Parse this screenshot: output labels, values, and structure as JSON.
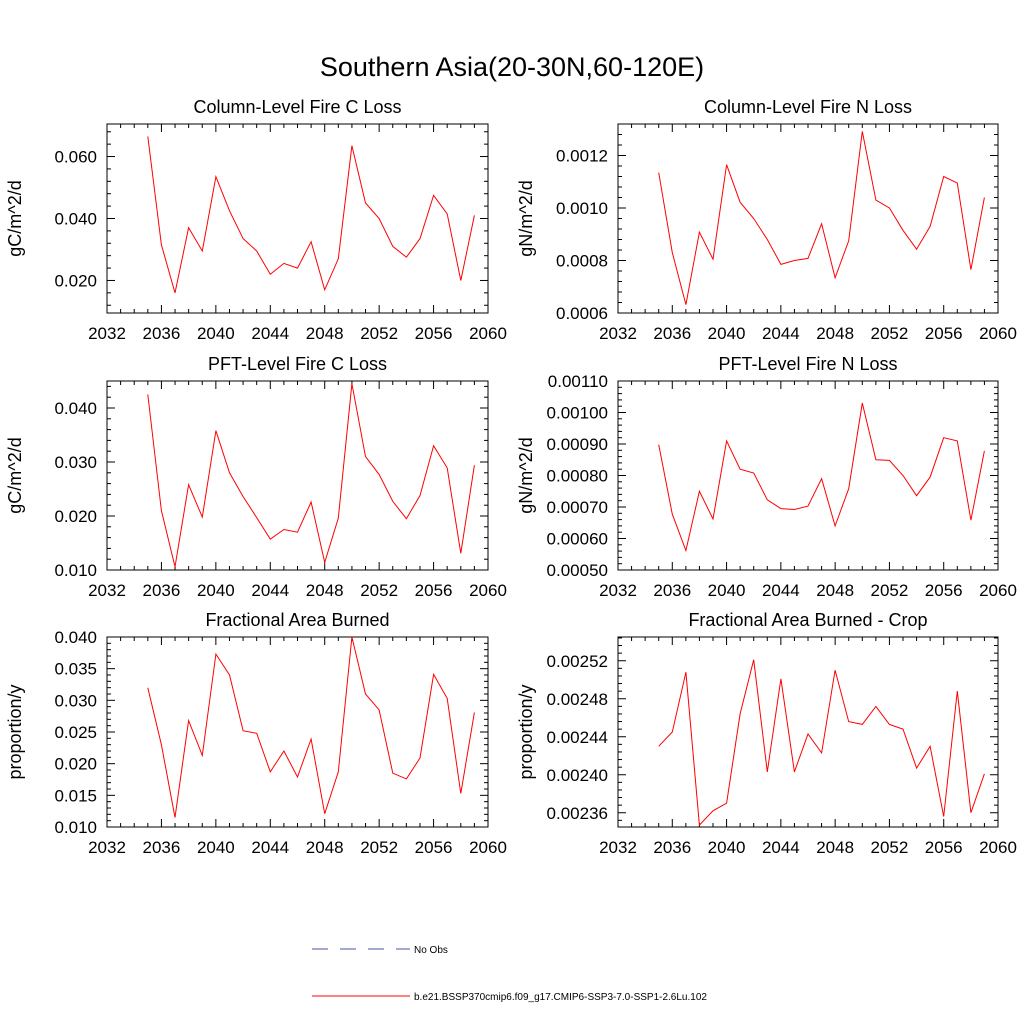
{
  "title": "Southern Asia(20-30N,60-120E)",
  "legend": {
    "items": [
      {
        "label": "No Obs",
        "color": "#4455aa",
        "style": "dashed"
      },
      {
        "label": "b.e21.BSSP370cmip6.f09_g17.CMIP6-SSP3-7.0-SSP1-2.6Lu.102",
        "color": "#ff0000",
        "style": "solid"
      }
    ]
  },
  "chart_data": [
    {
      "type": "line",
      "title": "Column-Level Fire C Loss",
      "ylabel": "gC/m^2/d",
      "xlim": [
        2032,
        2060
      ],
      "ylim": [
        0.0095,
        0.0705
      ],
      "xticks": [
        2032,
        2036,
        2040,
        2044,
        2048,
        2052,
        2056,
        2060
      ],
      "yticks": [
        0.02,
        0.04,
        0.06
      ],
      "ytick_labels": [
        "0.020",
        "0.040",
        "0.060"
      ],
      "series": [
        {
          "color": "#ff0000",
          "x": [
            2035,
            2036,
            2037,
            2038,
            2039,
            2040,
            2041,
            2042,
            2043,
            2044,
            2045,
            2046,
            2047,
            2048,
            2049,
            2050,
            2051,
            2052,
            2053,
            2054,
            2055,
            2056,
            2057,
            2058,
            2059
          ],
          "values": [
            0.0665,
            0.0315,
            0.016,
            0.037,
            0.0295,
            0.0535,
            0.0425,
            0.0335,
            0.0295,
            0.022,
            0.0255,
            0.024,
            0.0325,
            0.017,
            0.027,
            0.0635,
            0.045,
            0.04,
            0.031,
            0.0275,
            0.0335,
            0.0475,
            0.0415,
            0.02,
            0.041
          ]
        }
      ]
    },
    {
      "type": "line",
      "title": "Column-Level Fire N Loss",
      "ylabel": "gN/m^2/d",
      "xlim": [
        2032,
        2060
      ],
      "ylim": [
        0.0006,
        0.00132
      ],
      "xticks": [
        2032,
        2036,
        2040,
        2044,
        2048,
        2052,
        2056,
        2060
      ],
      "yticks": [
        0.0006,
        0.0008,
        0.001,
        0.0012
      ],
      "ytick_labels": [
        "0.0006",
        "0.0008",
        "0.0010",
        "0.0012"
      ],
      "series": [
        {
          "color": "#ff0000",
          "x": [
            2035,
            2036,
            2037,
            2038,
            2039,
            2040,
            2041,
            2042,
            2043,
            2044,
            2045,
            2046,
            2047,
            2048,
            2049,
            2050,
            2051,
            2052,
            2053,
            2054,
            2055,
            2056,
            2057,
            2058,
            2059
          ],
          "values": [
            0.001135,
            0.00083,
            0.000632,
            0.000908,
            0.000805,
            0.001165,
            0.001022,
            0.00096,
            0.00088,
            0.000785,
            0.0008,
            0.000808,
            0.00094,
            0.000734,
            0.000875,
            0.001292,
            0.00103,
            0.001,
            0.000915,
            0.000843,
            0.00093,
            0.00112,
            0.001095,
            0.000765,
            0.00104
          ]
        }
      ]
    },
    {
      "type": "line",
      "title": "PFT-Level Fire C Loss",
      "ylabel": "gC/m^2/d",
      "xlim": [
        2032,
        2060
      ],
      "ylim": [
        0.01,
        0.045
      ],
      "xticks": [
        2032,
        2036,
        2040,
        2044,
        2048,
        2052,
        2056,
        2060
      ],
      "yticks": [
        0.01,
        0.02,
        0.03,
        0.04
      ],
      "ytick_labels": [
        "0.010",
        "0.020",
        "0.030",
        "0.040"
      ],
      "series": [
        {
          "color": "#ff0000",
          "x": [
            2035,
            2036,
            2037,
            2038,
            2039,
            2040,
            2041,
            2042,
            2043,
            2044,
            2045,
            2046,
            2047,
            2048,
            2049,
            2050,
            2051,
            2052,
            2053,
            2054,
            2055,
            2056,
            2057,
            2058,
            2059
          ],
          "values": [
            0.0425,
            0.021,
            0.0106,
            0.0258,
            0.0198,
            0.0358,
            0.028,
            0.0236,
            0.0197,
            0.0157,
            0.0175,
            0.017,
            0.0226,
            0.0114,
            0.0196,
            0.0445,
            0.031,
            0.0277,
            0.0227,
            0.0195,
            0.0238,
            0.033,
            0.0289,
            0.0131,
            0.0294
          ]
        }
      ]
    },
    {
      "type": "line",
      "title": "PFT-Level Fire N Loss",
      "ylabel": "gN/m^2/d",
      "xlim": [
        2032,
        2060
      ],
      "ylim": [
        0.0005,
        0.0011
      ],
      "xticks": [
        2032,
        2036,
        2040,
        2044,
        2048,
        2052,
        2056,
        2060
      ],
      "yticks": [
        0.0005,
        0.0006,
        0.0007,
        0.0008,
        0.0009,
        0.001,
        0.0011
      ],
      "ytick_labels": [
        "0.00050",
        "0.00060",
        "0.00070",
        "0.00080",
        "0.00090",
        "0.00100",
        "0.00110"
      ],
      "series": [
        {
          "color": "#ff0000",
          "x": [
            2035,
            2036,
            2037,
            2038,
            2039,
            2040,
            2041,
            2042,
            2043,
            2044,
            2045,
            2046,
            2047,
            2048,
            2049,
            2050,
            2051,
            2052,
            2053,
            2054,
            2055,
            2056,
            2057,
            2058,
            2059
          ],
          "values": [
            0.000898,
            0.000677,
            0.000562,
            0.00075,
            0.000662,
            0.00091,
            0.00082,
            0.000808,
            0.000723,
            0.000695,
            0.000692,
            0.000703,
            0.00079,
            0.00064,
            0.000758,
            0.00103,
            0.00085,
            0.000848,
            0.0008,
            0.000736,
            0.000795,
            0.00092,
            0.00091,
            0.000658,
            0.000878
          ]
        }
      ]
    },
    {
      "type": "line",
      "title": "Fractional Area Burned",
      "ylabel": "proportion/y",
      "xlim": [
        2032,
        2060
      ],
      "ylim": [
        0.01,
        0.04
      ],
      "xticks": [
        2032,
        2036,
        2040,
        2044,
        2048,
        2052,
        2056,
        2060
      ],
      "yticks": [
        0.01,
        0.015,
        0.02,
        0.025,
        0.03,
        0.035,
        0.04
      ],
      "ytick_labels": [
        "0.010",
        "0.015",
        "0.020",
        "0.025",
        "0.030",
        "0.035",
        "0.040"
      ],
      "series": [
        {
          "color": "#ff0000",
          "x": [
            2035,
            2036,
            2037,
            2038,
            2039,
            2040,
            2041,
            2042,
            2043,
            2044,
            2045,
            2046,
            2047,
            2048,
            2049,
            2050,
            2051,
            2052,
            2053,
            2054,
            2055,
            2056,
            2057,
            2058,
            2059
          ],
          "values": [
            0.032,
            0.023,
            0.0115,
            0.0268,
            0.0213,
            0.0373,
            0.034,
            0.0252,
            0.0248,
            0.0187,
            0.022,
            0.0179,
            0.0239,
            0.0121,
            0.0187,
            0.04,
            0.031,
            0.0285,
            0.0185,
            0.0176,
            0.0209,
            0.0341,
            0.0303,
            0.0153,
            0.0281
          ]
        }
      ]
    },
    {
      "type": "line",
      "title": "Fractional Area Burned - Crop",
      "ylabel": "proportion/y",
      "xlim": [
        2032,
        2060
      ],
      "ylim": [
        0.002345,
        0.002545
      ],
      "xticks": [
        2032,
        2036,
        2040,
        2044,
        2048,
        2052,
        2056,
        2060
      ],
      "yticks": [
        0.00236,
        0.0024,
        0.00244,
        0.00248,
        0.00252
      ],
      "ytick_labels": [
        "0.00236",
        "0.00240",
        "0.00244",
        "0.00248",
        "0.00252"
      ],
      "series": [
        {
          "color": "#ff0000",
          "x": [
            2035,
            2036,
            2037,
            2038,
            2039,
            2040,
            2041,
            2042,
            2043,
            2044,
            2045,
            2046,
            2047,
            2048,
            2049,
            2050,
            2051,
            2052,
            2053,
            2054,
            2055,
            2056,
            2057,
            2058,
            2059
          ],
          "values": [
            0.00243,
            0.002445,
            0.002508,
            0.002347,
            0.002362,
            0.00237,
            0.002464,
            0.002521,
            0.002403,
            0.002501,
            0.002403,
            0.002443,
            0.002423,
            0.00251,
            0.002456,
            0.002453,
            0.002472,
            0.002453,
            0.002448,
            0.002407,
            0.00243,
            0.002356,
            0.002488,
            0.00236,
            0.002401
          ]
        }
      ]
    }
  ]
}
